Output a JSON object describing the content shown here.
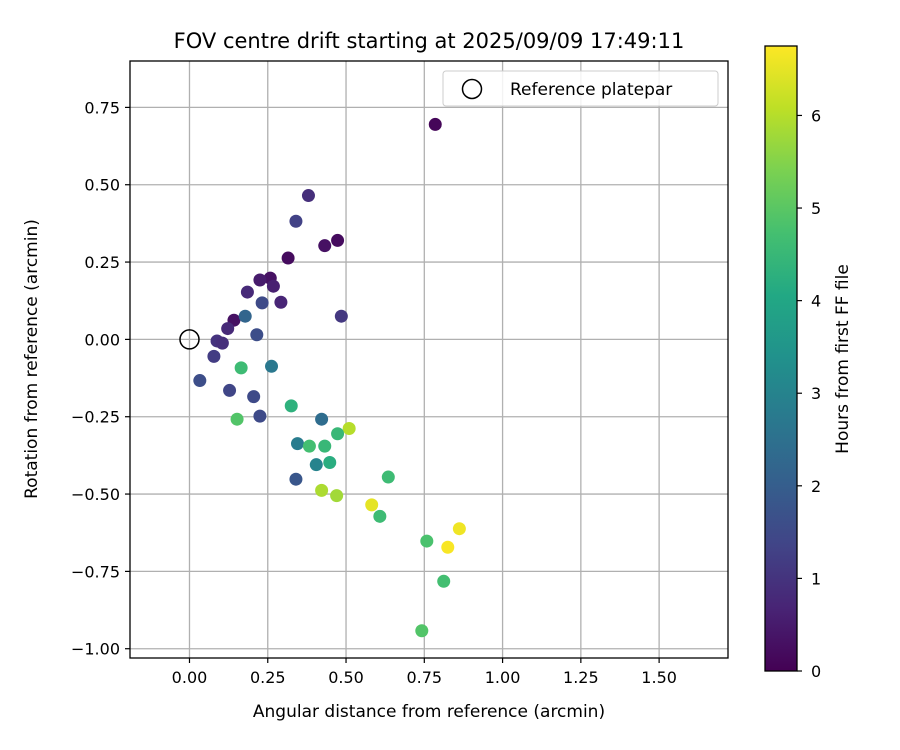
{
  "chart_data": {
    "type": "scatter",
    "title": "FOV centre drift starting at 2025/09/09 17:49:11",
    "xlabel": "Angular distance from reference (arcmin)",
    "ylabel": "Rotation from reference (arcmin)",
    "xlim": [
      -0.19,
      1.72
    ],
    "ylim": [
      -1.03,
      0.9
    ],
    "x_ticks": [
      0.0,
      0.25,
      0.5,
      0.75,
      1.0,
      1.25,
      1.5
    ],
    "x_tick_labels": [
      "0.00",
      "0.25",
      "0.50",
      "0.75",
      "1.00",
      "1.25",
      "1.50"
    ],
    "y_ticks": [
      0.75,
      0.5,
      0.25,
      0.0,
      -0.25,
      -0.5,
      -0.75,
      -1.0
    ],
    "y_tick_labels": [
      "0.75",
      "0.50",
      "0.25",
      "0.00",
      "−0.25",
      "−0.50",
      "−0.75",
      "−1.00"
    ],
    "grid": true,
    "legend": {
      "position": "top-right",
      "entries": [
        {
          "label": "Reference platepar",
          "marker": "open-circle"
        }
      ]
    },
    "reference_point": {
      "x": 0.0,
      "y": 0.0
    },
    "colorbar": {
      "label": "Hours from first FF file",
      "range": [
        0,
        6.75
      ],
      "ticks": [
        0,
        1,
        2,
        3,
        4,
        5,
        6
      ],
      "tick_labels": [
        "0",
        "1",
        "2",
        "3",
        "4",
        "5",
        "6"
      ],
      "colormap": "viridis"
    },
    "points": [
      {
        "x": 0.785,
        "y": 0.695,
        "hours": 0.1
      },
      {
        "x": 0.38,
        "y": 0.465,
        "hours": 0.9
      },
      {
        "x": 0.34,
        "y": 0.382,
        "hours": 1.3
      },
      {
        "x": 0.473,
        "y": 0.32,
        "hours": 0.2
      },
      {
        "x": 0.432,
        "y": 0.303,
        "hours": 0.3
      },
      {
        "x": 0.315,
        "y": 0.263,
        "hours": 0.2
      },
      {
        "x": 0.258,
        "y": 0.198,
        "hours": 0.3
      },
      {
        "x": 0.225,
        "y": 0.192,
        "hours": 0.5
      },
      {
        "x": 0.268,
        "y": 0.172,
        "hours": 0.6
      },
      {
        "x": 0.185,
        "y": 0.153,
        "hours": 0.8
      },
      {
        "x": 0.292,
        "y": 0.12,
        "hours": 0.7
      },
      {
        "x": 0.232,
        "y": 0.118,
        "hours": 1.5
      },
      {
        "x": 0.142,
        "y": 0.062,
        "hours": 0.3
      },
      {
        "x": 0.178,
        "y": 0.075,
        "hours": 2.2
      },
      {
        "x": 0.485,
        "y": 0.075,
        "hours": 1.1
      },
      {
        "x": 0.122,
        "y": 0.035,
        "hours": 0.8
      },
      {
        "x": 0.215,
        "y": 0.015,
        "hours": 1.6
      },
      {
        "x": 0.088,
        "y": -0.005,
        "hours": 1.0
      },
      {
        "x": 0.105,
        "y": -0.012,
        "hours": 0.9
      },
      {
        "x": 0.078,
        "y": -0.055,
        "hours": 1.2
      },
      {
        "x": 0.262,
        "y": -0.087,
        "hours": 2.7
      },
      {
        "x": 0.165,
        "y": -0.092,
        "hours": 4.6
      },
      {
        "x": 0.033,
        "y": -0.133,
        "hours": 1.6
      },
      {
        "x": 0.128,
        "y": -0.165,
        "hours": 1.4
      },
      {
        "x": 0.205,
        "y": -0.185,
        "hours": 1.5
      },
      {
        "x": 0.325,
        "y": -0.215,
        "hours": 4.3
      },
      {
        "x": 0.225,
        "y": -0.248,
        "hours": 1.5
      },
      {
        "x": 0.152,
        "y": -0.258,
        "hours": 4.9
      },
      {
        "x": 0.422,
        "y": -0.258,
        "hours": 2.4
      },
      {
        "x": 0.51,
        "y": -0.288,
        "hours": 6.0
      },
      {
        "x": 0.473,
        "y": -0.305,
        "hours": 4.5
      },
      {
        "x": 0.345,
        "y": -0.337,
        "hours": 2.8
      },
      {
        "x": 0.383,
        "y": -0.345,
        "hours": 4.7
      },
      {
        "x": 0.432,
        "y": -0.345,
        "hours": 4.5
      },
      {
        "x": 0.448,
        "y": -0.398,
        "hours": 4.2
      },
      {
        "x": 0.405,
        "y": -0.405,
        "hours": 3.0
      },
      {
        "x": 0.635,
        "y": -0.445,
        "hours": 4.6
      },
      {
        "x": 0.34,
        "y": -0.452,
        "hours": 1.8
      },
      {
        "x": 0.422,
        "y": -0.488,
        "hours": 5.9
      },
      {
        "x": 0.47,
        "y": -0.505,
        "hours": 5.8
      },
      {
        "x": 0.582,
        "y": -0.535,
        "hours": 6.5
      },
      {
        "x": 0.608,
        "y": -0.572,
        "hours": 4.6
      },
      {
        "x": 0.862,
        "y": -0.612,
        "hours": 6.6
      },
      {
        "x": 0.758,
        "y": -0.652,
        "hours": 4.8
      },
      {
        "x": 0.825,
        "y": -0.672,
        "hours": 6.7
      },
      {
        "x": 0.812,
        "y": -0.782,
        "hours": 4.7
      },
      {
        "x": 0.742,
        "y": -0.942,
        "hours": 4.9
      }
    ]
  }
}
